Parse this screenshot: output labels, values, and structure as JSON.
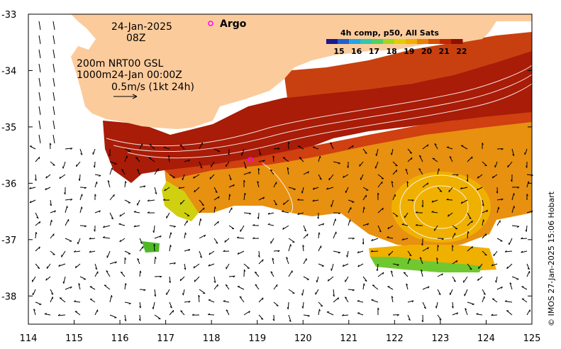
{
  "map": {
    "lon_range": [
      114,
      125
    ],
    "lat_range": [
      -38.5,
      -33
    ],
    "lon_ticks": [
      "114",
      "115",
      "116",
      "117",
      "118",
      "119",
      "120",
      "121",
      "122",
      "123",
      "124",
      "125"
    ],
    "lat_ticks": [
      "-33",
      "-34",
      "-35",
      "-36",
      "-37",
      "-38"
    ],
    "land_color": "#fccb9c",
    "annotations": {
      "date": "24-Jan-2025",
      "hour": "08Z",
      "depth_line1": "200m  NRT00 GSL",
      "depth_line2": "1000m24-Jan 00:00Z",
      "scale": "0.5m/s (1kt 24h)"
    },
    "argo": {
      "label": "Argo",
      "color": "#ff00ff"
    },
    "colorbar": {
      "title": "4h comp, p50, All Sats",
      "ticks": [
        "15",
        "16",
        "17",
        "18",
        "19",
        "20",
        "21",
        "22"
      ],
      "colors": [
        "#1a1a8c",
        "#1f5fd0",
        "#22a5e8",
        "#30c8b0",
        "#50d060",
        "#a0d820",
        "#e0d000",
        "#f0b000",
        "#e88000",
        "#d85000",
        "#c02800",
        "#8c1000"
      ]
    },
    "credit": "© IMOS 27-Jan-2025 15:06 Hobart"
  }
}
